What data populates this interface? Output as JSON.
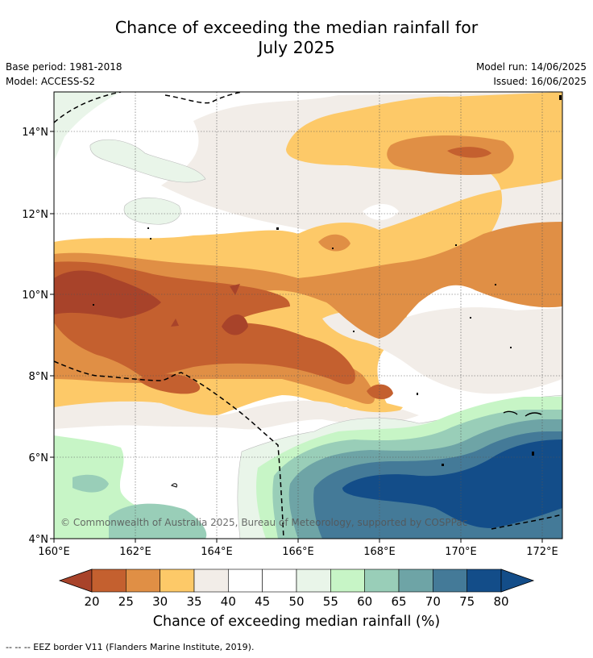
{
  "title_line1": "Chance of exceeding the median rainfall for",
  "title_line2": "July 2025",
  "meta_left": [
    "Base period: 1981-2018",
    "Model: ACCESS-S2"
  ],
  "meta_right": [
    "Model run: 14/06/2025",
    "Issued: 16/06/2025"
  ],
  "lat_labels": [
    "14°N",
    "12°N",
    "10°N",
    "8°N",
    "6°N",
    "4°N"
  ],
  "lon_labels": [
    "160°E",
    "162°E",
    "164°E",
    "166°E",
    "168°E",
    "170°E",
    "172°E"
  ],
  "colorbar": {
    "ticks": [
      "20",
      "25",
      "30",
      "35",
      "40",
      "45",
      "50",
      "55",
      "60",
      "65",
      "70",
      "75",
      "80"
    ],
    "colors": [
      "#a8432a",
      "#c4602f",
      "#e08f45",
      "#fdc968",
      "#f2ede8",
      "#ffffff",
      "#ffffff",
      "#e9f5e9",
      "#c7f5c6",
      "#99ceb8",
      "#6ea4a6",
      "#447a98",
      "#134d89"
    ],
    "under_color": "#a8432a",
    "over_color": "#134d89",
    "label": "Chance of exceeding median rainfall (%)"
  },
  "copyright": "© Commonwealth of Australia 2025, Bureau of Meteorology, supported by COSPPac",
  "footer": "--  --  -- EEZ border V11 (Flanders Marine Institute, 2019)."
}
